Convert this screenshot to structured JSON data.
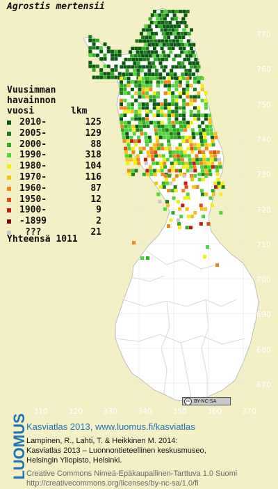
{
  "species": "Agrostis mertensii",
  "legend": {
    "title_lines": [
      "Vuusimman",
      "havainnon",
      "vuosi"
    ],
    "count_header": "lkm",
    "items": [
      {
        "label": "2010-",
        "count": "125",
        "color": "#0a5a12"
      },
      {
        "label": "2005-",
        "count": "129",
        "color": "#1e7d1a"
      },
      {
        "label": "2000-",
        "count": "88",
        "color": "#2fae22"
      },
      {
        "label": "1990-",
        "count": "318",
        "color": "#52d43a"
      },
      {
        "label": "1980-",
        "count": "104",
        "color": "#f4ee10"
      },
      {
        "label": "1970-",
        "count": "116",
        "color": "#f4c21a"
      },
      {
        "label": "1960-",
        "count": "87",
        "color": "#f2861e"
      },
      {
        "label": "1950-",
        "count": "12",
        "color": "#e04a14"
      },
      {
        "label": "1900-",
        "count": "9",
        "color": "#c01a10"
      },
      {
        "label": "-1899",
        "count": "2",
        "color": "#7a0a08"
      },
      {
        "label": "???",
        "count": "21",
        "color": "#c8c8c8"
      }
    ],
    "total_label": "Yhteensä",
    "total_value": "1011"
  },
  "y_axis_labels": [
    "770",
    "760",
    "750",
    "740",
    "730",
    "720",
    "710",
    "700",
    "690",
    "680",
    "670"
  ],
  "x_axis_labels": [
    "310",
    "320",
    "330",
    "340",
    "350",
    "360",
    "370"
  ],
  "license_badge": {
    "cc": "cc",
    "text": "BY-NC-SA"
  },
  "footer": {
    "logo": "LUOMUS",
    "url_line": "Kasviatlas 2013, www.luomus.fi/kasviatlas",
    "citation_lines": [
      "Lampinen, R., Lahti, T. & Heikkinen M. 2014:",
      "Kasviatlas 2013 – Luonnontieteellinen keskusmuseo,",
      "Helsingin Yliopisto, Helsinki."
    ],
    "license_lines": [
      "Creative Commons Nimeä-Epäkaupallinen-Tarttuva 1.0 Suomi",
      "http://creativecommons.org/licenses/by-nc-sa/1.0/fi"
    ]
  },
  "colors": {
    "background": "#f2f0c4",
    "land": "#ffffff",
    "grid": "#e6e6e6",
    "accent": "#1f72b8"
  }
}
